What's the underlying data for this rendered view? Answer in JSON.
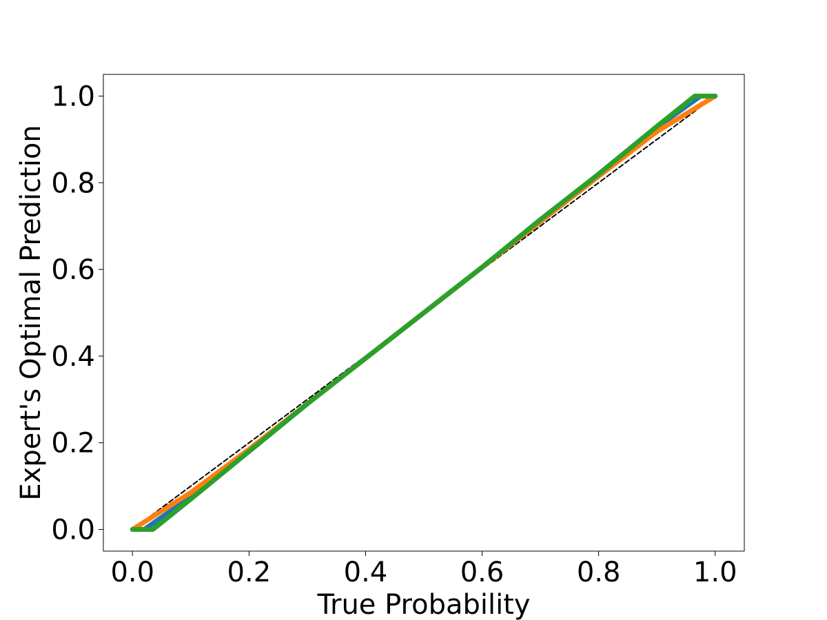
{
  "chart_data": {
    "type": "line",
    "xlabel": "True Probability",
    "ylabel": "Expert's Optimal Prediction",
    "xlim": [
      -0.05,
      1.05
    ],
    "ylim": [
      -0.05,
      1.05
    ],
    "xticks": [
      {
        "value": 0,
        "label": "0.0"
      },
      {
        "value": 0.2,
        "label": "0.2"
      },
      {
        "value": 0.4,
        "label": "0.4"
      },
      {
        "value": 0.6,
        "label": "0.6"
      },
      {
        "value": 0.8,
        "label": "0.8"
      },
      {
        "value": 1,
        "label": "1.0"
      }
    ],
    "yticks": [
      {
        "value": 0,
        "label": "0.0"
      },
      {
        "value": 0.2,
        "label": "0.2"
      },
      {
        "value": 0.4,
        "label": "0.4"
      },
      {
        "value": 0.6,
        "label": "0.6"
      },
      {
        "value": 0.8,
        "label": "0.8"
      },
      {
        "value": 1,
        "label": "1.0"
      }
    ],
    "series": [
      {
        "color": "#000000",
        "style": "dashed",
        "x": [
          0,
          1
        ],
        "values": [
          0,
          1
        ]
      },
      {
        "color": "#1f77b4",
        "style": "solid",
        "x": [
          0,
          0.02,
          0.1,
          0.2,
          0.3,
          0.4,
          0.5,
          0.6,
          0.7,
          0.8,
          0.9,
          0.975,
          1
        ],
        "values": [
          0,
          0,
          0.075,
          0.18,
          0.29,
          0.395,
          0.5,
          0.605,
          0.713,
          0.82,
          0.928,
          1,
          1
        ]
      },
      {
        "color": "#ff7f0e",
        "style": "solid",
        "x": [
          0,
          0.1,
          0.2,
          0.3,
          0.4,
          0.5,
          0.6,
          0.7,
          0.8,
          0.9,
          1
        ],
        "values": [
          0,
          0.085,
          0.185,
          0.29,
          0.395,
          0.5,
          0.605,
          0.71,
          0.815,
          0.918,
          1
        ]
      },
      {
        "color": "#2ca02c",
        "style": "solid",
        "x": [
          0,
          0.035,
          0.1,
          0.2,
          0.3,
          0.4,
          0.5,
          0.6,
          0.7,
          0.8,
          0.9,
          0.965,
          1
        ],
        "values": [
          0,
          0,
          0.07,
          0.18,
          0.29,
          0.395,
          0.5,
          0.605,
          0.715,
          0.82,
          0.93,
          1,
          1
        ]
      }
    ]
  }
}
